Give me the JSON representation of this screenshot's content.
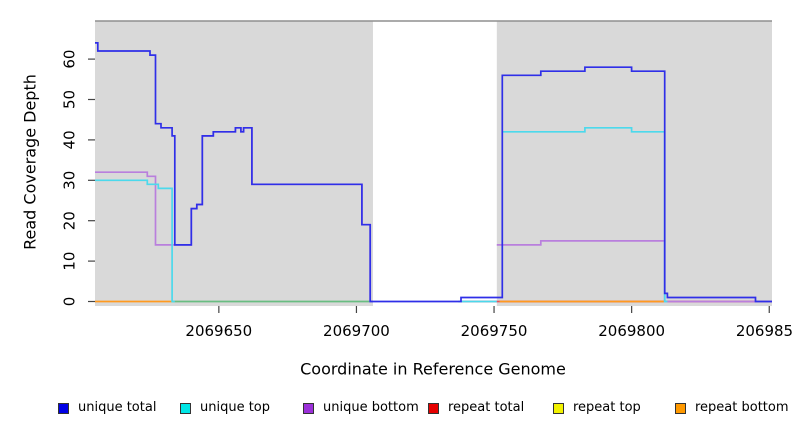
{
  "chart_data": {
    "type": "line",
    "subtype": "step-coverage-plot",
    "xlabel": "Coordinate in Reference Genome",
    "ylabel": "Read Coverage Depth",
    "xlim": [
      2069605,
      2069851
    ],
    "ylim": [
      0,
      69
    ],
    "x_ticks": [
      2069650,
      2069700,
      2069750,
      2069800,
      2069850
    ],
    "y_ticks": [
      0,
      10,
      20,
      30,
      40,
      50,
      60
    ],
    "grid": false,
    "shade_color": "#d9d9d9",
    "top_rule_color": "#8f8f8f",
    "shaded_regions": [
      {
        "from": 2069605,
        "to": 2069706
      },
      {
        "from": 2069751,
        "to": 2069851
      }
    ],
    "white_gap": {
      "from": 2069706,
      "to": 2069751
    },
    "series": [
      {
        "name": "repeat total",
        "color": "#e04f63",
        "segments": [
          {
            "points": [
              [
                2069738,
                0
              ]
            ],
            "end": 2069851
          }
        ]
      },
      {
        "name": "unlabeled green baseline",
        "color": "#69bd82",
        "segments": [
          {
            "points": [
              [
                2069633,
                0
              ]
            ],
            "end": 2069706
          }
        ]
      },
      {
        "name": "repeat bottom",
        "color": "#ff9a20",
        "segments": [
          {
            "points": [
              [
                2069605,
                0
              ]
            ],
            "end": 2069633
          },
          {
            "points": [
              [
                2069752,
                0
              ]
            ],
            "end": 2069812
          }
        ]
      },
      {
        "name": "unique bottom",
        "color": "#b97fdd",
        "segments": [
          {
            "points": [
              [
                2069605,
                32
              ],
              [
                2069624,
                31
              ],
              [
                2069627,
                14
              ],
              [
                2069640,
                23
              ],
              [
                2069642,
                24
              ],
              [
                2069644,
                41
              ],
              [
                2069648,
                42
              ],
              [
                2069656,
                43
              ],
              [
                2069658,
                42
              ],
              [
                2069659,
                43
              ],
              [
                2069662,
                29
              ],
              [
                2069702,
                19
              ],
              [
                2069705,
                0
              ]
            ],
            "end": 2069706
          },
          {
            "points": [
              [
                2069751,
                14
              ],
              [
                2069767,
                15
              ],
              [
                2069812,
                0
              ]
            ],
            "end": 2069851
          }
        ]
      },
      {
        "name": "unique top",
        "color": "#4cd9ec",
        "segments": [
          {
            "points": [
              [
                2069605,
                30
              ],
              [
                2069624,
                29
              ],
              [
                2069628,
                28
              ],
              [
                2069633,
                0
              ]
            ],
            "end": 2069634
          },
          {
            "points": [
              [
                2069737,
                0
              ]
            ],
            "end": 2069751
          },
          {
            "points": [
              [
                2069753,
                42
              ],
              [
                2069783,
                43
              ],
              [
                2069800,
                42
              ],
              [
                2069812,
                0
              ]
            ],
            "end": 2069813
          }
        ]
      },
      {
        "name": "unique total",
        "color": "#2f2fe8",
        "segments": [
          {
            "points": [
              [
                2069605,
                64
              ],
              [
                2069606,
                62
              ],
              [
                2069625,
                61
              ],
              [
                2069627,
                44
              ],
              [
                2069629,
                43
              ],
              [
                2069633,
                41
              ],
              [
                2069634,
                14
              ],
              [
                2069640,
                23
              ],
              [
                2069642,
                24
              ],
              [
                2069644,
                41
              ],
              [
                2069648,
                42
              ],
              [
                2069656,
                43
              ],
              [
                2069658,
                42
              ],
              [
                2069659,
                43
              ],
              [
                2069662,
                29
              ],
              [
                2069702,
                19
              ],
              [
                2069705,
                0
              ],
              [
                2069738,
                1
              ],
              [
                2069753,
                56
              ],
              [
                2069767,
                57
              ],
              [
                2069783,
                58
              ],
              [
                2069800,
                57
              ],
              [
                2069812,
                2
              ],
              [
                2069813,
                1
              ],
              [
                2069845,
                0
              ]
            ],
            "end": 2069851
          }
        ]
      }
    ],
    "legend": {
      "position": "bottom",
      "items": [
        {
          "label": "unique total",
          "color": "#0000e6"
        },
        {
          "label": "unique top",
          "color": "#00e6e6"
        },
        {
          "label": "unique bottom",
          "color": "#9b30d9"
        },
        {
          "label": "repeat total",
          "color": "#e60000"
        },
        {
          "label": "repeat top",
          "color": "#f2f200"
        },
        {
          "label": "repeat bottom",
          "color": "#ff9900"
        }
      ]
    }
  }
}
